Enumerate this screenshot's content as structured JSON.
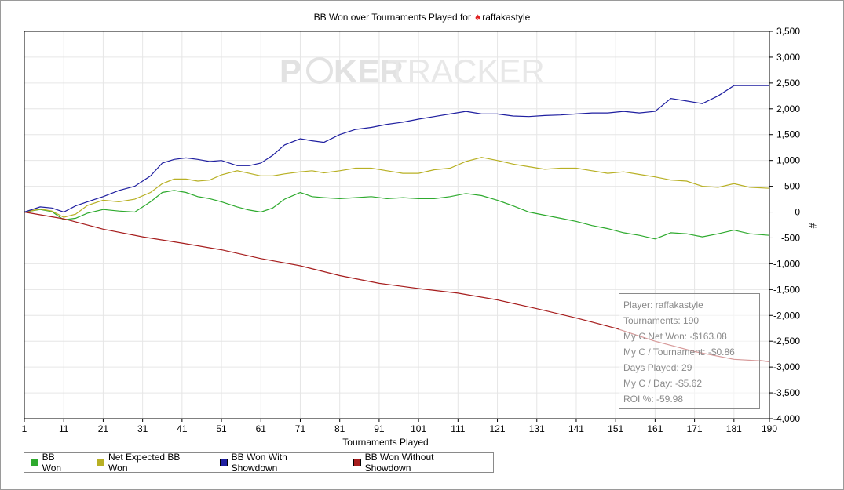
{
  "title": {
    "prefix": "BB Won over Tournaments Played for",
    "suit": "♠",
    "player": "raffakastyle"
  },
  "watermark": {
    "part1": "P",
    "part2": "KER",
    "part3": "TRACKER"
  },
  "colors": {
    "bb_won": "#2eaa2e",
    "net_expected": "#b8b024",
    "with_showdown": "#1f1fa0",
    "without_showdown": "#a61d1d"
  },
  "chart_data": {
    "type": "line",
    "title": "BB Won over Tournaments Played for raffakastyle",
    "xlabel": "Tournaments Played",
    "ylabel": "#",
    "xlim": [
      1,
      190
    ],
    "ylim": [
      -4000,
      3500
    ],
    "x_ticks": [
      "1",
      "11",
      "21",
      "31",
      "41",
      "51",
      "61",
      "71",
      "81",
      "91",
      "101",
      "111",
      "121",
      "131",
      "141",
      "151",
      "161",
      "171",
      "181",
      "190"
    ],
    "y_ticks": [
      "3,500",
      "3,000",
      "2,500",
      "2,000",
      "1,500",
      "1,000",
      "500",
      "0",
      "-500",
      "-1,000",
      "-1,500",
      "-2,000",
      "-2,500",
      "-3,000",
      "-3,500",
      "-4,000"
    ],
    "grid": true,
    "series": [
      {
        "name": "BB Won",
        "key": "bb_won",
        "x": [
          1,
          5,
          8,
          11,
          14,
          17,
          21,
          25,
          29,
          33,
          36,
          39,
          42,
          45,
          48,
          51,
          55,
          58,
          61,
          64,
          67,
          71,
          74,
          77,
          81,
          85,
          89,
          93,
          97,
          101,
          105,
          109,
          113,
          117,
          121,
          125,
          129,
          133,
          137,
          141,
          145,
          149,
          153,
          157,
          161,
          165,
          169,
          173,
          177,
          181,
          185,
          190
        ],
        "y": [
          0,
          50,
          10,
          -150,
          -120,
          -20,
          50,
          20,
          0,
          200,
          380,
          420,
          380,
          300,
          260,
          200,
          100,
          40,
          0,
          80,
          250,
          380,
          300,
          280,
          260,
          280,
          300,
          260,
          280,
          260,
          260,
          300,
          360,
          320,
          230,
          120,
          0,
          -60,
          -120,
          -180,
          -260,
          -320,
          -400,
          -450,
          -520,
          -400,
          -420,
          -480,
          -420,
          -350,
          -420,
          -450
        ]
      },
      {
        "name": "Net Expected BB Won",
        "key": "net_expected",
        "x": [
          1,
          5,
          8,
          11,
          14,
          17,
          21,
          25,
          29,
          33,
          36,
          39,
          42,
          45,
          48,
          51,
          55,
          58,
          61,
          64,
          67,
          71,
          74,
          77,
          81,
          85,
          89,
          93,
          97,
          101,
          105,
          109,
          113,
          117,
          121,
          125,
          129,
          133,
          137,
          141,
          145,
          149,
          153,
          157,
          161,
          165,
          169,
          173,
          177,
          181,
          185,
          190
        ],
        "y": [
          0,
          60,
          20,
          -100,
          -40,
          130,
          230,
          200,
          250,
          380,
          550,
          640,
          640,
          600,
          620,
          720,
          800,
          750,
          700,
          700,
          740,
          780,
          800,
          760,
          800,
          850,
          850,
          800,
          750,
          750,
          820,
          850,
          980,
          1060,
          1000,
          930,
          880,
          830,
          850,
          850,
          800,
          750,
          780,
          730,
          680,
          620,
          600,
          500,
          480,
          550,
          480,
          460
        ]
      },
      {
        "name": "BB Won With Showdown",
        "key": "with_showdown",
        "x": [
          1,
          5,
          8,
          11,
          14,
          17,
          21,
          25,
          29,
          33,
          36,
          39,
          42,
          45,
          48,
          51,
          55,
          58,
          61,
          64,
          67,
          71,
          74,
          77,
          81,
          85,
          89,
          93,
          97,
          101,
          105,
          109,
          113,
          117,
          121,
          125,
          129,
          133,
          137,
          141,
          145,
          149,
          153,
          157,
          161,
          165,
          169,
          173,
          177,
          181,
          185,
          190
        ],
        "y": [
          0,
          100,
          80,
          0,
          120,
          200,
          300,
          420,
          500,
          700,
          950,
          1020,
          1050,
          1020,
          980,
          1000,
          900,
          900,
          950,
          1100,
          1300,
          1420,
          1380,
          1350,
          1500,
          1600,
          1640,
          1700,
          1740,
          1800,
          1850,
          1900,
          1950,
          1900,
          1900,
          1860,
          1850,
          1870,
          1880,
          1900,
          1920,
          1920,
          1950,
          1920,
          1950,
          2200,
          2150,
          2100,
          2250,
          2450,
          2450,
          2450
        ]
      },
      {
        "name": "BB Won Without Showdown",
        "key": "without_showdown",
        "x": [
          1,
          11,
          21,
          31,
          41,
          51,
          61,
          71,
          81,
          91,
          101,
          111,
          121,
          131,
          141,
          151,
          161,
          171,
          181,
          190
        ],
        "y": [
          0,
          -130,
          -330,
          -480,
          -600,
          -730,
          -900,
          -1040,
          -1230,
          -1380,
          -1480,
          -1570,
          -1700,
          -1870,
          -2050,
          -2250,
          -2500,
          -2700,
          -2850,
          -2890
        ]
      }
    ]
  },
  "infobox": {
    "player": "Player: raffakastyle",
    "tournaments": "Tournaments: 190",
    "net_won": "My C Net Won: -$163.08",
    "per_tournament": "My C / Tournament: -$0.86",
    "days_played": "Days Played: 29",
    "per_day": "My C / Day: -$5.62",
    "roi": "ROI %: -59.98"
  },
  "legend": {
    "bb_won": "BB Won",
    "net_expected": "Net Expected BB Won",
    "with_showdown": "BB Won With Showdown",
    "without_showdown": "BB Won Without Showdown"
  }
}
